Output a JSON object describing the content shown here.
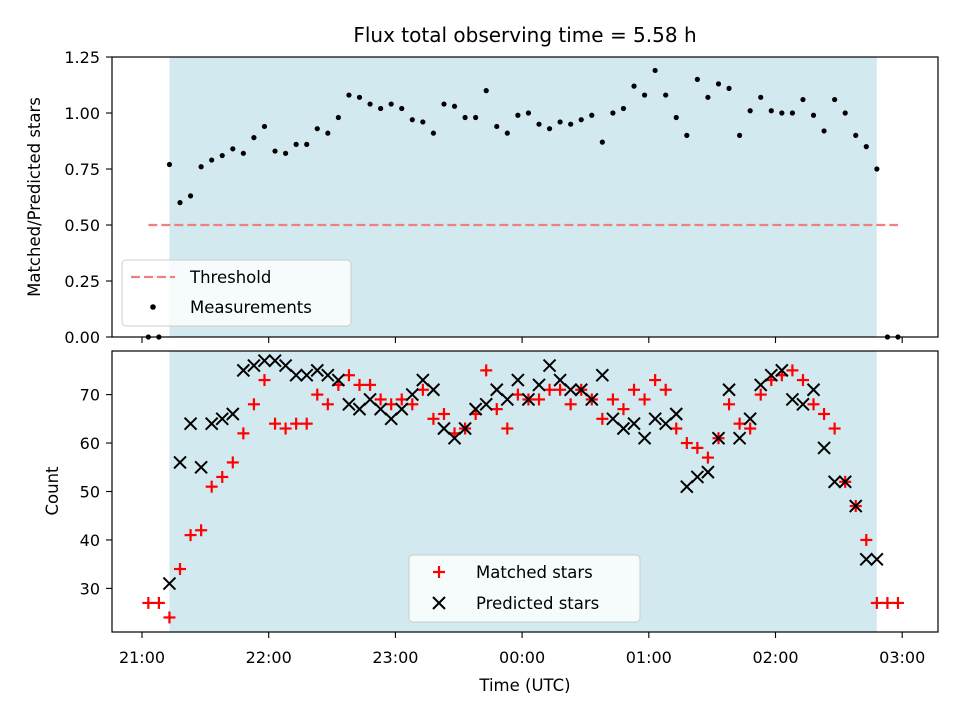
{
  "chart_data": [
    {
      "type": "scatter",
      "title": "Flux total observing time = 5.58 h",
      "xlabel": "",
      "ylabel": "Matched/Predicted stars",
      "ylim": [
        0,
        1.25
      ],
      "y_ticks": [
        "0.00",
        "0.25",
        "0.50",
        "0.75",
        "1.00",
        "1.25"
      ],
      "observing_window": {
        "start": "21:13",
        "end": "02:48",
        "color": "#d3e9f0"
      },
      "threshold": {
        "name": "Threshold",
        "value": 0.5,
        "x_start": "21:03",
        "x_end": "02:58",
        "color": "#f08080",
        "style": "dashed"
      },
      "series": [
        {
          "name": "Measurements",
          "color": "#000000",
          "x": [
            "21:03",
            "21:08",
            "21:13",
            "21:18",
            "21:23",
            "21:28",
            "21:33",
            "21:38",
            "21:43",
            "21:48",
            "21:53",
            "21:58",
            "22:03",
            "22:08",
            "22:13",
            "22:18",
            "22:23",
            "22:28",
            "22:33",
            "22:38",
            "22:43",
            "22:48",
            "22:53",
            "22:58",
            "23:03",
            "23:08",
            "23:13",
            "23:18",
            "23:23",
            "23:28",
            "23:33",
            "23:38",
            "23:43",
            "23:48",
            "23:53",
            "23:58",
            "00:03",
            "00:08",
            "00:13",
            "00:18",
            "00:23",
            "00:28",
            "00:33",
            "00:38",
            "00:43",
            "00:48",
            "00:53",
            "00:58",
            "01:03",
            "01:08",
            "01:13",
            "01:18",
            "01:23",
            "01:28",
            "01:33",
            "01:38",
            "01:43",
            "01:48",
            "01:53",
            "01:58",
            "02:03",
            "02:08",
            "02:13",
            "02:18",
            "02:23",
            "02:28",
            "02:33",
            "02:38",
            "02:43",
            "02:48",
            "02:53",
            "02:58"
          ],
          "y": [
            0.0,
            0.0,
            0.77,
            0.6,
            0.63,
            0.76,
            0.79,
            0.81,
            0.84,
            0.82,
            0.89,
            0.94,
            0.83,
            0.82,
            0.86,
            0.86,
            0.93,
            0.91,
            0.98,
            1.08,
            1.07,
            1.04,
            1.02,
            1.04,
            1.02,
            0.97,
            0.96,
            0.91,
            1.04,
            1.03,
            0.98,
            0.98,
            1.1,
            0.94,
            0.91,
            0.99,
            1.0,
            0.95,
            0.93,
            0.96,
            0.95,
            0.97,
            0.99,
            0.87,
            1.0,
            1.02,
            1.12,
            1.08,
            1.19,
            1.08,
            0.98,
            0.9,
            1.15,
            1.07,
            1.13,
            1.11,
            0.9,
            1.01,
            1.07,
            1.01,
            1.0,
            1.0,
            1.06,
            0.99,
            0.92,
            1.06,
            1.0,
            0.9,
            0.85,
            0.75,
            0.0,
            0.0
          ]
        }
      ]
    },
    {
      "type": "scatter",
      "title": "",
      "xlabel": "Time (UTC)",
      "ylabel": "Count",
      "ylim": [
        21,
        79
      ],
      "y_ticks": [
        "30",
        "40",
        "50",
        "60",
        "70"
      ],
      "x_ticks": [
        "21:00",
        "22:00",
        "23:00",
        "00:00",
        "01:00",
        "02:00",
        "03:00"
      ],
      "observing_window": {
        "start": "21:13",
        "end": "02:48",
        "color": "#d3e9f0"
      },
      "series": [
        {
          "name": "Matched stars",
          "color": "#ff0000",
          "marker": "plus",
          "x": [
            "21:03",
            "21:08",
            "21:13",
            "21:18",
            "21:23",
            "21:28",
            "21:33",
            "21:38",
            "21:43",
            "21:48",
            "21:53",
            "21:58",
            "22:03",
            "22:08",
            "22:13",
            "22:18",
            "22:23",
            "22:28",
            "22:33",
            "22:38",
            "22:43",
            "22:48",
            "22:53",
            "22:58",
            "23:03",
            "23:08",
            "23:13",
            "23:18",
            "23:23",
            "23:28",
            "23:33",
            "23:38",
            "23:43",
            "23:48",
            "23:53",
            "23:58",
            "00:03",
            "00:08",
            "00:13",
            "00:18",
            "00:23",
            "00:28",
            "00:33",
            "00:38",
            "00:43",
            "00:48",
            "00:53",
            "00:58",
            "01:03",
            "01:08",
            "01:13",
            "01:18",
            "01:23",
            "01:28",
            "01:33",
            "01:38",
            "01:43",
            "01:48",
            "01:53",
            "01:58",
            "02:03",
            "02:08",
            "02:13",
            "02:18",
            "02:23",
            "02:28",
            "02:33",
            "02:38",
            "02:43",
            "02:48",
            "02:53",
            "02:58"
          ],
          "y": [
            27,
            27,
            24,
            34,
            41,
            42,
            51,
            53,
            56,
            62,
            68,
            73,
            64,
            63,
            64,
            64,
            70,
            68,
            72,
            74,
            72,
            72,
            69,
            68,
            69,
            68,
            71,
            65,
            66,
            62,
            63,
            66,
            75,
            67,
            63,
            70,
            69,
            69,
            71,
            71,
            68,
            71,
            69,
            65,
            69,
            67,
            71,
            69,
            73,
            71,
            63,
            60,
            59,
            57,
            61,
            68,
            64,
            63,
            70,
            73,
            74,
            75,
            73,
            68,
            66,
            63,
            52,
            47,
            40,
            27,
            27,
            27
          ]
        },
        {
          "name": "Predicted stars",
          "color": "#000000",
          "marker": "x",
          "x": [
            "21:13",
            "21:18",
            "21:23",
            "21:28",
            "21:33",
            "21:38",
            "21:43",
            "21:48",
            "21:53",
            "21:58",
            "22:03",
            "22:08",
            "22:13",
            "22:18",
            "22:23",
            "22:28",
            "22:33",
            "22:38",
            "22:43",
            "22:48",
            "22:53",
            "22:58",
            "23:03",
            "23:08",
            "23:13",
            "23:18",
            "23:23",
            "23:28",
            "23:33",
            "23:38",
            "23:43",
            "23:48",
            "23:53",
            "23:58",
            "00:03",
            "00:08",
            "00:13",
            "00:18",
            "00:23",
            "00:28",
            "00:33",
            "00:38",
            "00:43",
            "00:48",
            "00:53",
            "00:58",
            "01:03",
            "01:08",
            "01:13",
            "01:18",
            "01:23",
            "01:28",
            "01:33",
            "01:38",
            "01:43",
            "01:48",
            "01:53",
            "01:58",
            "02:03",
            "02:08",
            "02:13",
            "02:18",
            "02:23",
            "02:28",
            "02:33",
            "02:38",
            "02:43",
            "02:48"
          ],
          "y": [
            31,
            56,
            64,
            55,
            64,
            65,
            66,
            75,
            76,
            77,
            77,
            76,
            74,
            74,
            75,
            74,
            73,
            68,
            67,
            69,
            67,
            65,
            67,
            70,
            73,
            71,
            63,
            61,
            63,
            67,
            68,
            71,
            69,
            73,
            69,
            72,
            76,
            73,
            71,
            71,
            69,
            74,
            65,
            63,
            64,
            61,
            65,
            64,
            66,
            51,
            53,
            54,
            61,
            71,
            61,
            65,
            72,
            74,
            75,
            69,
            68,
            71,
            59,
            52,
            52,
            47,
            36,
            36
          ]
        }
      ]
    }
  ]
}
